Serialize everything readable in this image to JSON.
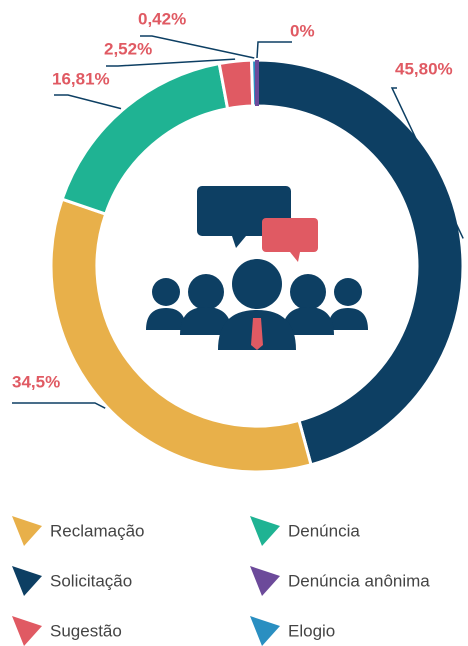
{
  "chart_data": {
    "type": "pie",
    "donut": true,
    "categories": [
      "Solicitação",
      "Reclamação",
      "Denúncia",
      "Sugestão",
      "Elogio",
      "Denúncia anônima"
    ],
    "values": [
      45.8,
      34.5,
      16.81,
      2.52,
      0.42,
      0
    ],
    "value_labels": [
      "45,80%",
      "34,5%",
      "16,81%",
      "2,52%",
      "0,42%",
      "0%"
    ],
    "colors": [
      "#0d3f63",
      "#e8b04a",
      "#1fb393",
      "#e05a63",
      "#2a8fc1",
      "#6c4a9a"
    ]
  }
}
